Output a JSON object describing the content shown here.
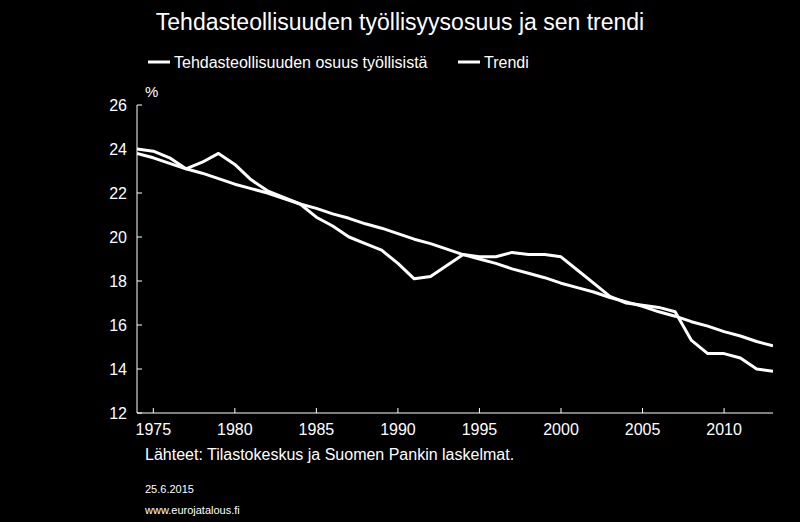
{
  "chart_data": {
    "type": "line",
    "title": "Tehdasteollisuuden työllisyysosuus ja sen trendi",
    "y_label": "%",
    "annotations": [
      "Lähteet: Tilastokeskus ja Suomen Pankin laskelmat.",
      "25.6.2015",
      "www.eurojatalous.fi"
    ],
    "x": [
      1974,
      1975,
      1976,
      1977,
      1978,
      1979,
      1980,
      1981,
      1982,
      1983,
      1984,
      1985,
      1986,
      1987,
      1988,
      1989,
      1990,
      1991,
      1992,
      1993,
      1994,
      1995,
      1996,
      1997,
      1998,
      1999,
      2000,
      2001,
      2002,
      2003,
      2004,
      2005,
      2006,
      2007,
      2008,
      2009,
      2010,
      2011,
      2012,
      2013
    ],
    "series": [
      {
        "name": "Tehdasteollisuuden osuus työllisistä",
        "color": "#ffffff",
        "line_style": "solid",
        "values": [
          24.0,
          23.9,
          23.6,
          23.1,
          23.4,
          23.8,
          23.3,
          22.6,
          22.1,
          21.8,
          21.5,
          20.9,
          20.5,
          20.0,
          19.7,
          19.4,
          18.8,
          18.1,
          18.2,
          18.7,
          19.2,
          19.1,
          19.1,
          19.3,
          19.2,
          19.2,
          19.1,
          18.5,
          17.9,
          17.3,
          17.0,
          16.9,
          16.8,
          16.6,
          15.3,
          14.7,
          14.7,
          14.5,
          14.0,
          13.9
        ]
      },
      {
        "name": "Trendi",
        "color": "#ffffff",
        "line_style": "solid",
        "values": [
          23.8,
          23.6,
          23.35,
          23.1,
          22.9,
          22.65,
          22.4,
          22.2,
          22.0,
          21.75,
          21.5,
          21.3,
          21.05,
          20.85,
          20.6,
          20.4,
          20.15,
          19.9,
          19.7,
          19.45,
          19.2,
          19.0,
          18.8,
          18.55,
          18.35,
          18.15,
          17.9,
          17.7,
          17.5,
          17.25,
          17.05,
          16.85,
          16.6,
          16.4,
          16.15,
          15.95,
          15.7,
          15.5,
          15.25,
          15.05
        ]
      }
    ],
    "xlim": [
      1974,
      2013
    ],
    "xticks": [
      1975,
      1980,
      1985,
      1990,
      1995,
      2000,
      2005,
      2010
    ],
    "ylim": [
      12,
      26
    ],
    "yticks": [
      12,
      14,
      16,
      18,
      20,
      22,
      24,
      26
    ],
    "grid": false,
    "legend": "top"
  }
}
